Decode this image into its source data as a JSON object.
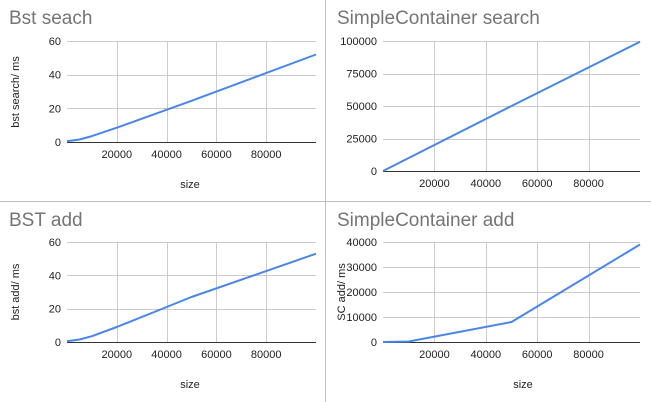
{
  "chart_data": [
    {
      "type": "line",
      "title": "Bst seach",
      "xlabel": "size",
      "ylabel": "bst search/ ms",
      "xlim": [
        0,
        100000
      ],
      "ylim": [
        0,
        60
      ],
      "xticks": [
        "20000",
        "40000",
        "60000",
        "80000"
      ],
      "xtick_values": [
        20000,
        40000,
        60000,
        80000
      ],
      "yticks": [
        "0",
        "20",
        "40",
        "60"
      ],
      "ytick_values": [
        0,
        20,
        40,
        60
      ],
      "grid": true,
      "series": [
        {
          "color": "#4a86e8",
          "x": [
            0,
            5000,
            10000,
            20000,
            50000,
            100000
          ],
          "y": [
            0.5,
            1.5,
            3.5,
            8.5,
            24.5,
            52
          ]
        }
      ]
    },
    {
      "type": "line",
      "title": "SimpleContainer search",
      "xlabel": "",
      "ylabel": "",
      "xlim": [
        0,
        100000
      ],
      "ylim": [
        0,
        100000
      ],
      "xticks": [
        "20000",
        "40000",
        "60000",
        "80000"
      ],
      "xtick_values": [
        20000,
        40000,
        60000,
        80000
      ],
      "yticks": [
        "0",
        "25000",
        "50000",
        "75000",
        "100000"
      ],
      "ytick_values": [
        0,
        25000,
        50000,
        75000,
        100000
      ],
      "grid": true,
      "series": [
        {
          "color": "#4a86e8",
          "x": [
            0,
            50000,
            100000
          ],
          "y": [
            0,
            50000,
            99500
          ]
        }
      ]
    },
    {
      "type": "line",
      "title": "BST add",
      "xlabel": "size",
      "ylabel": "bst add/ ms",
      "xlim": [
        0,
        100000
      ],
      "ylim": [
        0,
        60
      ],
      "xticks": [
        "20000",
        "40000",
        "60000",
        "80000"
      ],
      "xtick_values": [
        20000,
        40000,
        60000,
        80000
      ],
      "yticks": [
        "0",
        "20",
        "40",
        "60"
      ],
      "ytick_values": [
        0,
        20,
        40,
        60
      ],
      "grid": true,
      "series": [
        {
          "color": "#4a86e8",
          "x": [
            0,
            5000,
            10000,
            20000,
            50000,
            100000
          ],
          "y": [
            0.5,
            1.5,
            3.5,
            9,
            27,
            53
          ]
        }
      ]
    },
    {
      "type": "line",
      "title": "SimpleContainer add",
      "xlabel": "size",
      "ylabel": "SC add/ ms",
      "xlim": [
        0,
        100000
      ],
      "ylim": [
        0,
        40000
      ],
      "xticks": [
        "20000",
        "40000",
        "60000",
        "80000"
      ],
      "xtick_values": [
        20000,
        40000,
        60000,
        80000
      ],
      "yticks": [
        "0",
        "10000",
        "20000",
        "30000",
        "40000"
      ],
      "ytick_values": [
        0,
        10000,
        20000,
        30000,
        40000
      ],
      "grid": true,
      "series": [
        {
          "color": "#4a86e8",
          "x": [
            0,
            10000,
            50000,
            100000
          ],
          "y": [
            0,
            200,
            8000,
            39000
          ]
        }
      ]
    }
  ]
}
